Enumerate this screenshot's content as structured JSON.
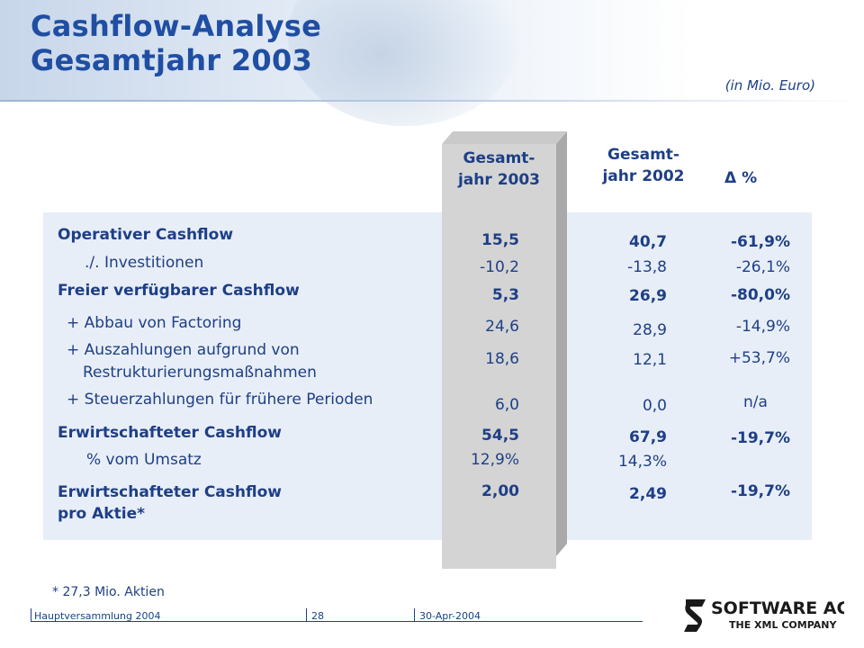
{
  "header": {
    "title_line1": "Cashflow-Analyse",
    "title_line2": "Gesamtjahr 2003",
    "units": "(in Mio. Euro)"
  },
  "columns": {
    "col2003_line1": "Gesamt-",
    "col2003_line2": "jahr 2003",
    "col2002_line1": "Gesamt-",
    "col2002_line2": "jahr 2002",
    "delta": "Δ  %"
  },
  "rows": {
    "r1": {
      "label": "Operativer Cashflow",
      "v2003": "15,5",
      "v2002": "40,7",
      "delta": "-61,9%"
    },
    "r2": {
      "label": "./. Investitionen",
      "v2003": "-10,2",
      "v2002": "-13,8",
      "delta": "-26,1%"
    },
    "r3": {
      "label": "Freier verfügbarer Cashflow",
      "v2003": "5,3",
      "v2002": "26,9",
      "delta": "-80,0%"
    },
    "r4": {
      "label": "+ Abbau von Factoring",
      "v2003": "24,6",
      "v2002": "28,9",
      "delta": "-14,9%"
    },
    "r5": {
      "label_line1": "+ Auszahlungen aufgrund von",
      "label_line2": "Restrukturierungsmaßnahmen",
      "v2003": "18,6",
      "v2002": "12,1",
      "delta": "+53,7%"
    },
    "r6": {
      "label": "+ Steuerzahlungen für frühere Perioden",
      "v2003": "6,0",
      "v2002": "0,0",
      "delta": "n/a"
    },
    "r7": {
      "label": "Erwirtschafteter Cashflow",
      "v2003": "54,5",
      "v2002": "67,9",
      "delta": "-19,7%"
    },
    "r8": {
      "label": "% vom Umsatz",
      "v2003": "12,9%",
      "v2002": "14,3%"
    },
    "r9": {
      "label_line1": "Erwirtschafteter Cashflow",
      "label_line2": "pro Aktie*",
      "v2003": "2,00",
      "v2002": "2,49",
      "delta": "-19,7%"
    }
  },
  "footnote": "* 27,3 Mio. Aktien",
  "footer": {
    "event": "Hauptversammlung 2004",
    "page": "28",
    "date": "30-Apr-2004",
    "logo_name": "SOFTWARE AG",
    "logo_tagline": "THE XML COMPANY"
  },
  "colors": {
    "title": "#1f4ea3",
    "text": "#1e3f86",
    "table_bg": "#e8eef7",
    "column_highlight": "#d4d4d4"
  }
}
